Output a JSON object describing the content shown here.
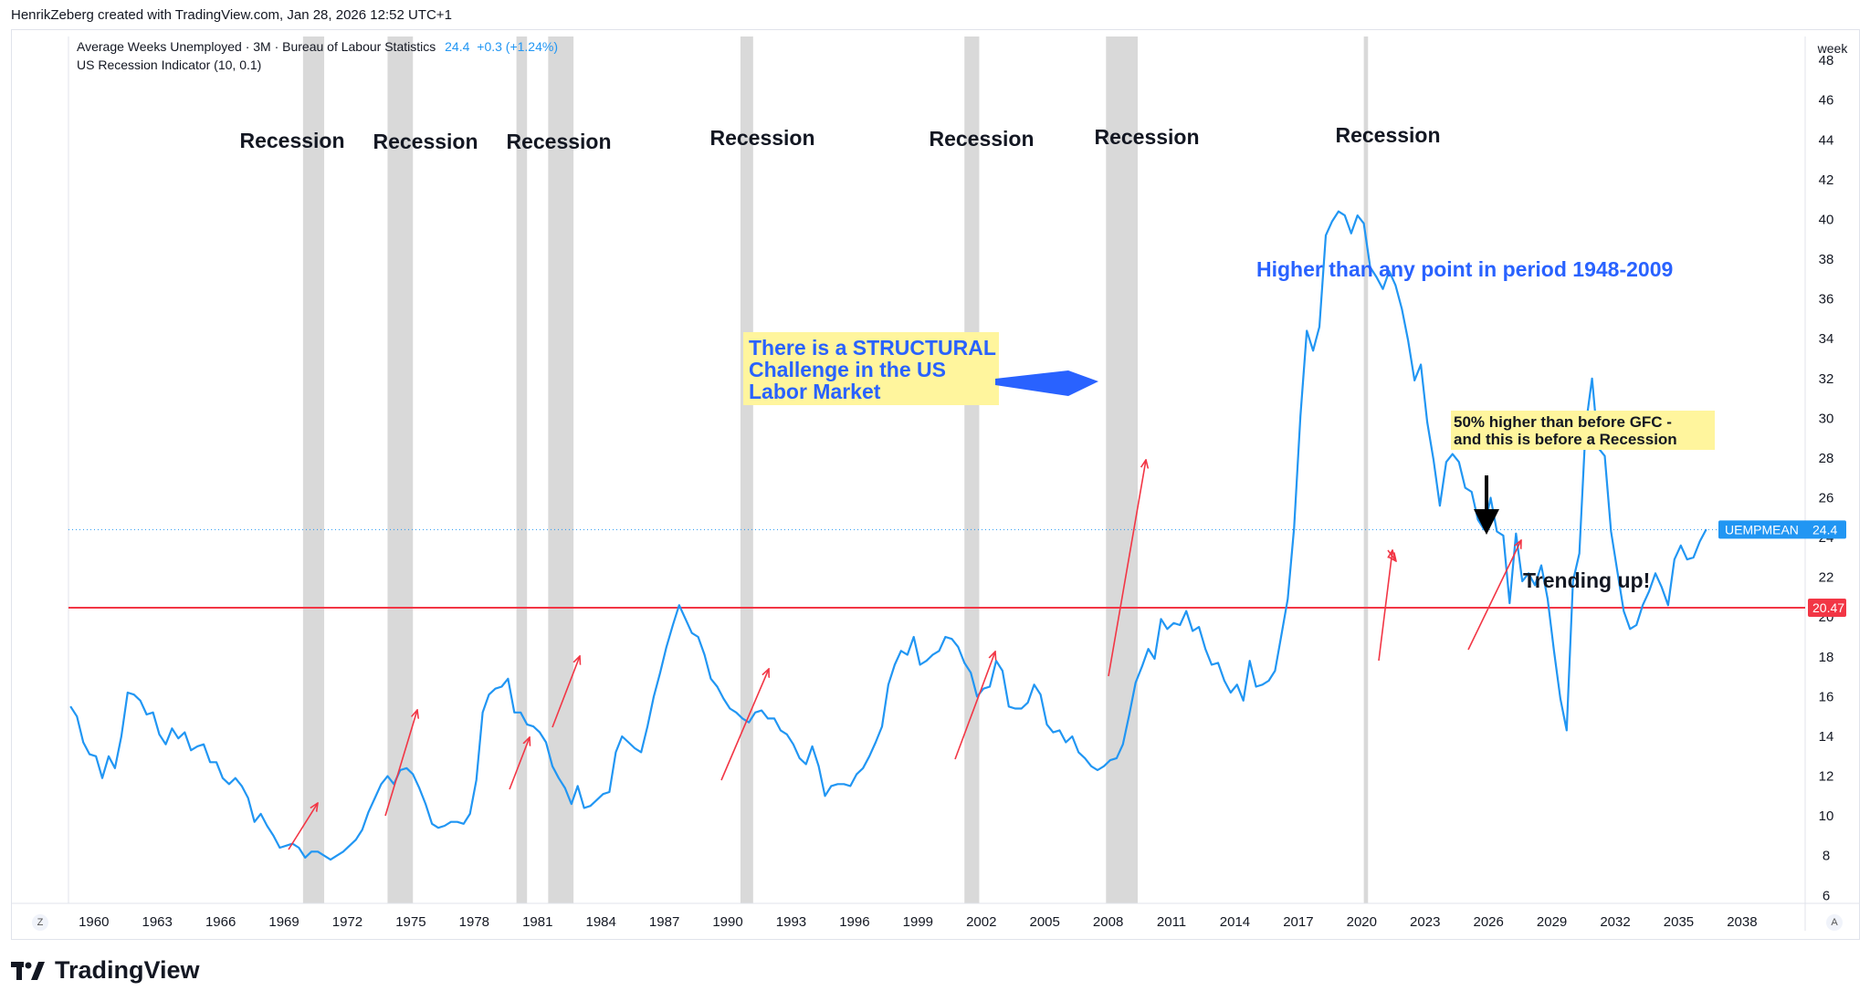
{
  "header": {
    "created_by": "HenrikZeberg created with TradingView.com, Jan 28, 2026 12:52 UTC+1"
  },
  "legend": {
    "series_label": "Average Weeks Unemployed · 3M · Bureau of Labour Statistics",
    "value": "24.4",
    "change": "+0.3 (+1.24%)",
    "indicator": "US Recession Indicator (10, 0.1)"
  },
  "axis": {
    "unit": "week",
    "z_button": "Z",
    "a_button": "A"
  },
  "brand": {
    "name": "TradingView"
  },
  "colors": {
    "series": "#2196f3",
    "recession": "#d9d9d9",
    "hline": "#f23645",
    "annotation_blue": "#2962ff",
    "note_bg": "#fff59d",
    "arrow_red": "#f23645"
  },
  "chart_data": {
    "type": "line",
    "title": "",
    "xlabel": "",
    "ylabel": "week",
    "xlim": [
      1958.8,
      2040.9
    ],
    "ylim": [
      5.6,
      49.2
    ],
    "x_ticks": [
      1960,
      1963,
      1966,
      1969,
      1972,
      1975,
      1978,
      1981,
      1984,
      1987,
      1990,
      1993,
      1996,
      1999,
      2002,
      2005,
      2008,
      2011,
      2014,
      2017,
      2020,
      2023,
      2026,
      2029,
      2032,
      2035,
      2038
    ],
    "y_ticks": [
      6,
      8,
      10,
      12,
      14,
      16,
      18,
      20,
      22,
      24,
      26,
      28,
      30,
      32,
      34,
      36,
      38,
      40,
      42,
      44,
      46,
      48
    ],
    "series": [
      {
        "name": "UEMPMEAN",
        "last_value": "24.4",
        "points": [
          [
            1958.9,
            15.5
          ],
          [
            1959.2,
            15.0
          ],
          [
            1959.5,
            13.7
          ],
          [
            1959.8,
            13.1
          ],
          [
            1960.1,
            13.0
          ],
          [
            1960.4,
            11.9
          ],
          [
            1960.7,
            13.0
          ],
          [
            1961.0,
            12.4
          ],
          [
            1961.3,
            14.0
          ],
          [
            1961.6,
            16.2
          ],
          [
            1961.9,
            16.1
          ],
          [
            1962.2,
            15.8
          ],
          [
            1962.5,
            15.1
          ],
          [
            1962.8,
            15.2
          ],
          [
            1963.1,
            14.1
          ],
          [
            1963.4,
            13.6
          ],
          [
            1963.7,
            14.4
          ],
          [
            1964.0,
            13.9
          ],
          [
            1964.3,
            14.2
          ],
          [
            1964.6,
            13.3
          ],
          [
            1964.9,
            13.5
          ],
          [
            1965.2,
            13.6
          ],
          [
            1965.5,
            12.7
          ],
          [
            1965.8,
            12.7
          ],
          [
            1966.1,
            11.9
          ],
          [
            1966.4,
            11.6
          ],
          [
            1966.7,
            11.9
          ],
          [
            1967.0,
            11.5
          ],
          [
            1967.3,
            10.9
          ],
          [
            1967.6,
            9.7
          ],
          [
            1967.9,
            10.1
          ],
          [
            1968.2,
            9.5
          ],
          [
            1968.5,
            9.0
          ],
          [
            1968.8,
            8.4
          ],
          [
            1969.1,
            8.5
          ],
          [
            1969.4,
            8.6
          ],
          [
            1969.7,
            8.4
          ],
          [
            1970.0,
            7.9
          ],
          [
            1970.3,
            8.2
          ],
          [
            1970.6,
            8.2
          ],
          [
            1970.9,
            8.0
          ],
          [
            1971.2,
            7.8
          ],
          [
            1971.5,
            8.0
          ],
          [
            1971.8,
            8.2
          ],
          [
            1972.1,
            8.5
          ],
          [
            1972.4,
            8.8
          ],
          [
            1972.7,
            9.3
          ],
          [
            1973.0,
            10.2
          ],
          [
            1973.3,
            10.9
          ],
          [
            1973.6,
            11.6
          ],
          [
            1973.9,
            12.0
          ],
          [
            1974.2,
            11.6
          ],
          [
            1974.5,
            12.3
          ],
          [
            1974.8,
            12.4
          ],
          [
            1975.1,
            12.1
          ],
          [
            1975.4,
            11.4
          ],
          [
            1975.7,
            10.6
          ],
          [
            1976.0,
            9.6
          ],
          [
            1976.3,
            9.4
          ],
          [
            1976.6,
            9.5
          ],
          [
            1976.9,
            9.7
          ],
          [
            1977.2,
            9.7
          ],
          [
            1977.5,
            9.6
          ],
          [
            1977.8,
            10.1
          ],
          [
            1978.1,
            11.8
          ],
          [
            1978.4,
            15.2
          ],
          [
            1978.7,
            16.1
          ],
          [
            1979.0,
            16.4
          ],
          [
            1979.3,
            16.5
          ],
          [
            1979.6,
            16.9
          ],
          [
            1979.9,
            15.2
          ],
          [
            1980.2,
            15.2
          ],
          [
            1980.5,
            14.6
          ],
          [
            1980.8,
            14.5
          ],
          [
            1981.1,
            14.2
          ],
          [
            1981.4,
            13.7
          ],
          [
            1981.7,
            12.5
          ],
          [
            1982.0,
            11.9
          ],
          [
            1982.3,
            11.4
          ],
          [
            1982.6,
            10.6
          ],
          [
            1982.9,
            11.5
          ],
          [
            1983.2,
            10.4
          ],
          [
            1983.5,
            10.5
          ],
          [
            1983.8,
            10.8
          ],
          [
            1984.1,
            11.1
          ],
          [
            1984.4,
            11.2
          ],
          [
            1984.7,
            13.2
          ],
          [
            1985.0,
            14.0
          ],
          [
            1985.3,
            13.7
          ],
          [
            1985.6,
            13.4
          ],
          [
            1985.9,
            13.2
          ],
          [
            1986.2,
            14.5
          ],
          [
            1986.5,
            16.0
          ],
          [
            1986.8,
            17.2
          ],
          [
            1987.1,
            18.5
          ],
          [
            1987.4,
            19.6
          ],
          [
            1987.7,
            20.6
          ],
          [
            1988.0,
            19.9
          ],
          [
            1988.3,
            19.2
          ],
          [
            1988.6,
            19.0
          ],
          [
            1988.9,
            18.1
          ],
          [
            1989.2,
            16.9
          ],
          [
            1989.5,
            16.5
          ],
          [
            1989.8,
            15.9
          ],
          [
            1990.1,
            15.4
          ],
          [
            1990.4,
            15.2
          ],
          [
            1990.7,
            14.9
          ],
          [
            1991.0,
            14.7
          ],
          [
            1991.3,
            15.2
          ],
          [
            1991.6,
            15.3
          ],
          [
            1991.9,
            14.9
          ],
          [
            1992.2,
            14.9
          ],
          [
            1992.5,
            14.3
          ],
          [
            1992.8,
            14.1
          ],
          [
            1993.1,
            13.6
          ],
          [
            1993.4,
            12.9
          ],
          [
            1993.7,
            12.6
          ],
          [
            1994.0,
            13.5
          ],
          [
            1994.3,
            12.5
          ],
          [
            1994.6,
            11.0
          ],
          [
            1994.9,
            11.5
          ],
          [
            1995.2,
            11.6
          ],
          [
            1995.5,
            11.6
          ],
          [
            1995.8,
            11.5
          ],
          [
            1996.1,
            12.1
          ],
          [
            1996.4,
            12.4
          ],
          [
            1996.7,
            13.0
          ],
          [
            1997.0,
            13.7
          ],
          [
            1997.3,
            14.5
          ],
          [
            1997.6,
            16.6
          ],
          [
            1997.9,
            17.6
          ],
          [
            1998.2,
            18.3
          ],
          [
            1998.5,
            18.1
          ],
          [
            1998.8,
            19.0
          ],
          [
            1999.1,
            17.6
          ],
          [
            1999.4,
            17.8
          ],
          [
            1999.7,
            18.1
          ],
          [
            2000.0,
            18.3
          ],
          [
            2000.3,
            19.0
          ],
          [
            2000.6,
            18.9
          ],
          [
            2000.9,
            18.5
          ],
          [
            2001.2,
            17.7
          ],
          [
            2001.5,
            17.2
          ],
          [
            2001.8,
            16.0
          ],
          [
            2002.1,
            16.4
          ],
          [
            2002.4,
            16.5
          ],
          [
            2002.7,
            17.8
          ],
          [
            2003.0,
            17.3
          ],
          [
            2003.3,
            15.5
          ],
          [
            2003.6,
            15.4
          ],
          [
            2003.9,
            15.4
          ],
          [
            2004.2,
            15.7
          ],
          [
            2004.5,
            16.6
          ],
          [
            2004.8,
            16.1
          ],
          [
            2005.1,
            14.6
          ],
          [
            2005.4,
            14.2
          ],
          [
            2005.7,
            14.3
          ],
          [
            2006.0,
            13.7
          ],
          [
            2006.3,
            14.0
          ],
          [
            2006.6,
            13.2
          ],
          [
            2006.9,
            12.9
          ],
          [
            2007.2,
            12.5
          ],
          [
            2007.5,
            12.3
          ],
          [
            2007.8,
            12.5
          ],
          [
            2008.1,
            12.8
          ],
          [
            2008.4,
            12.9
          ],
          [
            2008.7,
            13.6
          ],
          [
            2009.0,
            15.1
          ],
          [
            2009.3,
            16.7
          ],
          [
            2009.6,
            17.5
          ],
          [
            2009.9,
            18.4
          ],
          [
            2010.2,
            17.9
          ],
          [
            2010.5,
            19.9
          ],
          [
            2010.8,
            19.4
          ],
          [
            2011.1,
            19.7
          ],
          [
            2011.4,
            19.6
          ],
          [
            2011.7,
            20.3
          ],
          [
            2012.0,
            19.3
          ],
          [
            2012.3,
            19.5
          ],
          [
            2012.6,
            18.4
          ],
          [
            2012.9,
            17.6
          ],
          [
            2013.2,
            17.7
          ],
          [
            2013.5,
            16.8
          ],
          [
            2013.8,
            16.2
          ],
          [
            2014.1,
            16.6
          ],
          [
            2014.4,
            15.8
          ],
          [
            2014.7,
            17.8
          ],
          [
            2015.0,
            16.5
          ],
          [
            2015.3,
            16.6
          ],
          [
            2015.6,
            16.8
          ],
          [
            2015.9,
            17.3
          ],
          [
            2016.2,
            19.1
          ],
          [
            2016.5,
            20.9
          ],
          [
            2016.8,
            24.5
          ],
          [
            2017.1,
            30.1
          ],
          [
            2017.4,
            34.4
          ],
          [
            2017.7,
            33.4
          ],
          [
            2018.0,
            34.6
          ],
          [
            2018.3,
            39.2
          ],
          [
            2018.6,
            39.9
          ],
          [
            2018.9,
            40.4
          ],
          [
            2019.2,
            40.2
          ],
          [
            2019.5,
            39.3
          ],
          [
            2019.8,
            40.2
          ],
          [
            2020.1,
            39.8
          ],
          [
            2020.4,
            37.6
          ],
          [
            2020.7,
            37.1
          ],
          [
            2021.0,
            36.5
          ],
          [
            2021.3,
            37.4
          ],
          [
            2021.6,
            36.7
          ],
          [
            2021.9,
            35.5
          ],
          [
            2022.2,
            33.9
          ],
          [
            2022.5,
            31.9
          ],
          [
            2022.8,
            32.7
          ],
          [
            2023.1,
            29.8
          ],
          [
            2023.4,
            27.9
          ],
          [
            2023.7,
            25.6
          ],
          [
            2024.0,
            27.8
          ],
          [
            2024.3,
            28.2
          ],
          [
            2024.6,
            27.8
          ],
          [
            2024.9,
            26.5
          ],
          [
            2025.2,
            26.3
          ],
          [
            2025.5,
            24.9
          ],
          [
            2025.8,
            24.4
          ],
          [
            2026.1,
            26.0
          ],
          [
            2026.4,
            24.3
          ],
          [
            2026.7,
            24.1
          ],
          [
            2027.0,
            20.7
          ],
          [
            2027.3,
            24.2
          ],
          [
            2027.6,
            21.8
          ],
          [
            2027.9,
            22.2
          ],
          [
            2028.2,
            21.6
          ],
          [
            2028.5,
            22.6
          ],
          [
            2028.8,
            20.9
          ],
          [
            2029.1,
            18.3
          ],
          [
            2029.4,
            15.9
          ],
          [
            2029.7,
            14.3
          ],
          [
            2030.0,
            21.8
          ],
          [
            2030.3,
            23.2
          ],
          [
            2030.6,
            29.6
          ],
          [
            2030.9,
            32.0
          ],
          [
            2031.2,
            28.5
          ],
          [
            2031.5,
            28.1
          ],
          [
            2031.8,
            24.3
          ],
          [
            2032.1,
            22.3
          ],
          [
            2032.4,
            20.3
          ],
          [
            2032.7,
            19.4
          ],
          [
            2033.0,
            19.6
          ],
          [
            2033.3,
            20.6
          ],
          [
            2033.6,
            21.3
          ],
          [
            2033.9,
            22.2
          ],
          [
            2034.2,
            21.5
          ],
          [
            2034.5,
            20.6
          ],
          [
            2034.8,
            22.9
          ],
          [
            2035.1,
            23.6
          ],
          [
            2035.4,
            22.9
          ],
          [
            2035.7,
            23.0
          ],
          [
            2036.0,
            23.8
          ],
          [
            2036.3,
            24.4
          ]
        ]
      }
    ],
    "horizontal_line": {
      "value": 20.47,
      "label": "20.47"
    },
    "current_value_line": {
      "value": 24.4,
      "label": "UEMPMEAN",
      "value_label": "24.4"
    },
    "recession_bands": [
      [
        1969.9,
        1970.9
      ],
      [
        1973.9,
        1975.1
      ],
      [
        1980.0,
        1980.5
      ],
      [
        1981.5,
        1982.7
      ],
      [
        1990.6,
        1991.2
      ],
      [
        2001.2,
        2001.9
      ],
      [
        2007.9,
        2009.4
      ],
      [
        2020.1,
        2020.3
      ]
    ],
    "annotations": {
      "recession_label": "Recession",
      "structural_note": [
        "There is a STRUCTURAL",
        "Challenge in the US",
        "Labor Market"
      ],
      "higher_note": "Higher than any point in period 1948-2009",
      "gfc_note": [
        "50% higher than before GFC -",
        "and this is before a Recession"
      ],
      "trend_note": "Trending up!"
    }
  }
}
